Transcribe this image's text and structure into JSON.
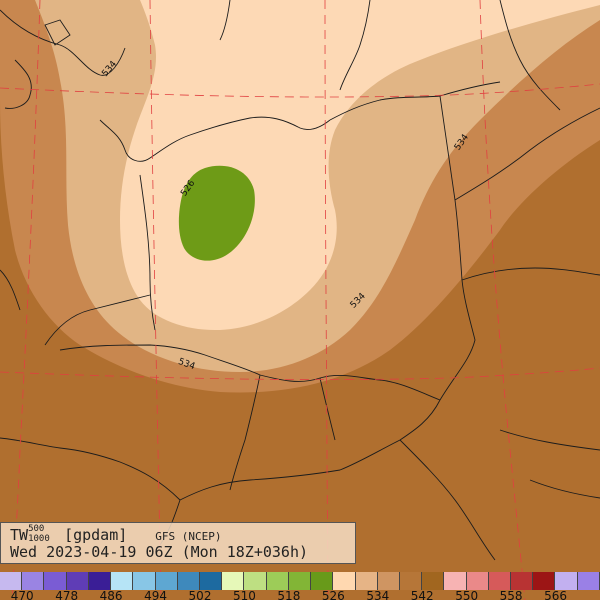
{
  "map": {
    "contour_labels": [
      "534",
      "526",
      "534",
      "534",
      "534"
    ],
    "fill_colors": {
      "band_542_550": "#b06f2f",
      "band_534_542": "#c8874f",
      "band_526_534": "#e1b585",
      "band_518_526": "#fdd9b5",
      "band_510_518": "#6e9b17"
    }
  },
  "info": {
    "variable": "TW",
    "sup": "500",
    "sub": "1000",
    "unit": "[gpdam]",
    "model": "GFS (NCEP)",
    "valid_time": "Wed 2023-04-19 06Z (Mon 18Z+036h)"
  },
  "colorbar": {
    "colors": [
      "#c6b9ef",
      "#9a84e3",
      "#7a5cd4",
      "#5f3db6",
      "#3a1e96",
      "#b6e4f6",
      "#88c6e6",
      "#5ea7d2",
      "#3e89bc",
      "#1d6aa0",
      "#e6f8b8",
      "#bedf82",
      "#9dcc58",
      "#82b536",
      "#689a1a",
      "#ffd8b0",
      "#e6b486",
      "#cf9562",
      "#b67638",
      "#a1661f",
      "#f7b3b3",
      "#ea8989",
      "#d65a5a",
      "#b83333",
      "#9c1515",
      "#c2b0f0",
      "#9a80e6"
    ],
    "labels": [
      "470",
      "478",
      "486",
      "494",
      "502",
      "510",
      "518",
      "526",
      "534",
      "542",
      "550",
      "558",
      "566"
    ]
  }
}
